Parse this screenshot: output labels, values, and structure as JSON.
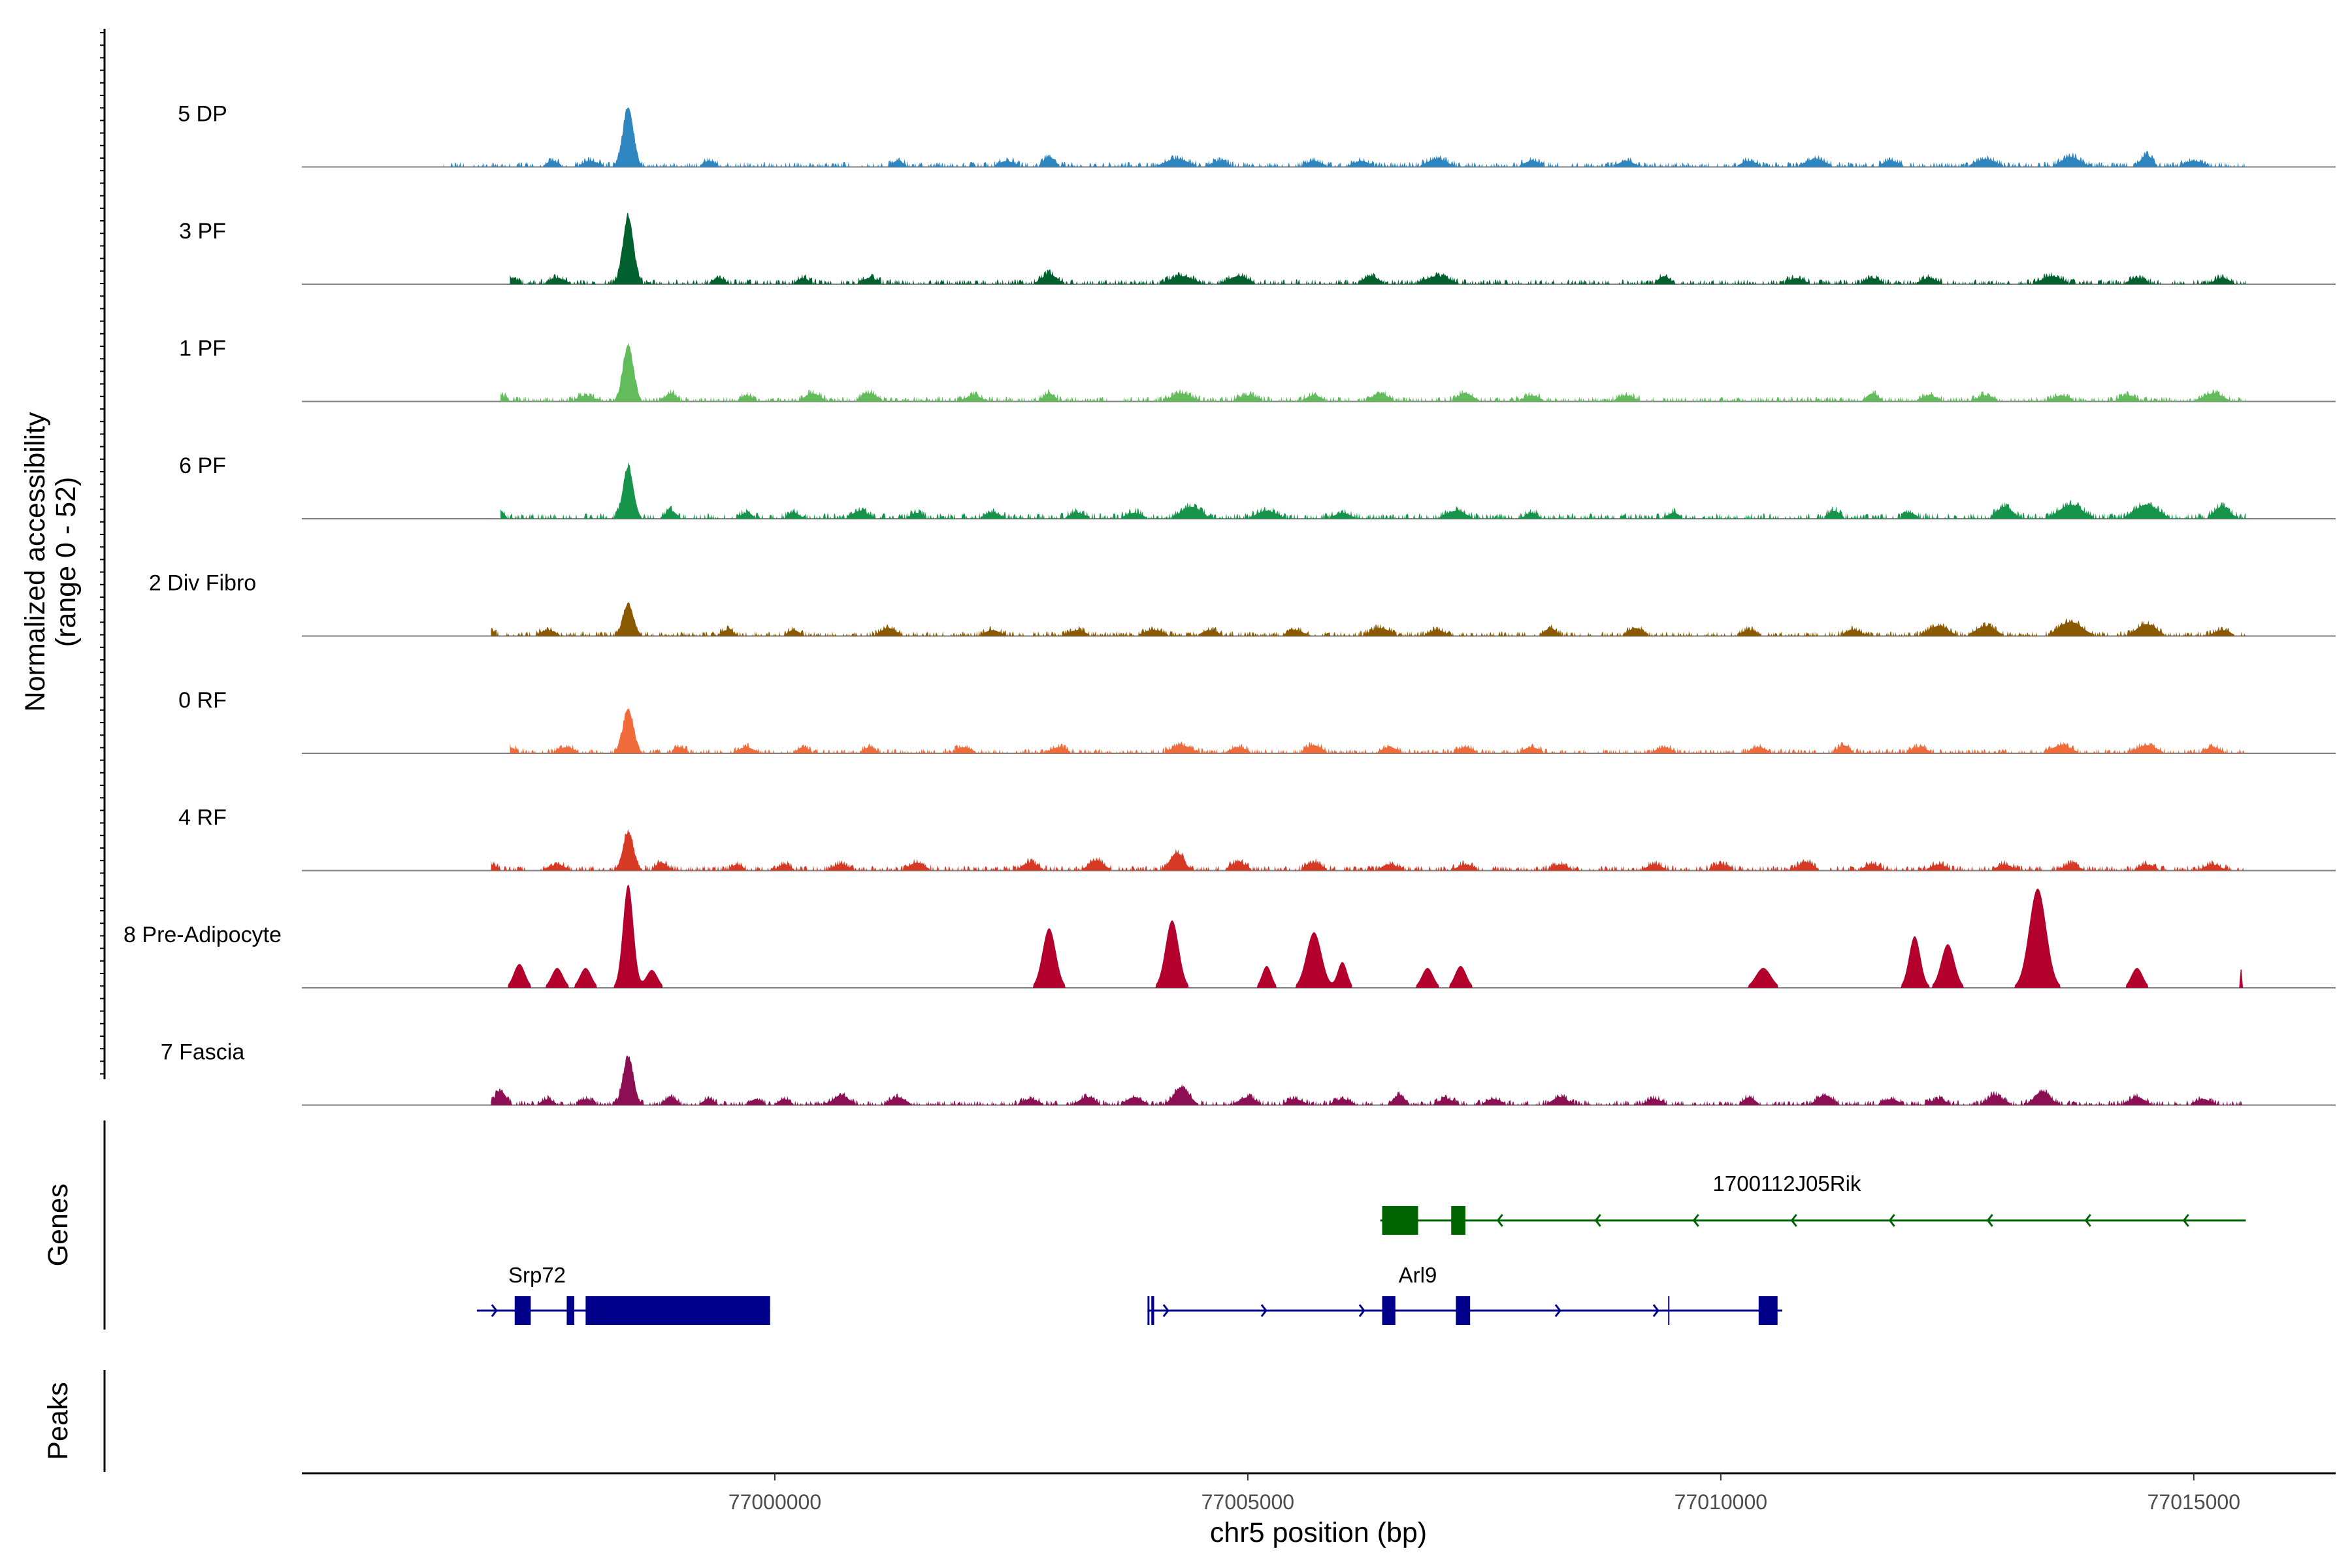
{
  "chart_data": {
    "type": "area",
    "title": "",
    "ylabel_line1": "Normalized accessibility",
    "ylabel_line2": "(range 0 - 52)",
    "ylim": [
      0,
      52
    ],
    "xlabel": "chr5 position (bp)",
    "xlim": [
      76995000,
      77016500
    ],
    "x_ticks": [
      77000000,
      77005000,
      77010000,
      77015000
    ],
    "x_tick_labels": [
      "77000000",
      "77005000",
      "77010000",
      "77015000"
    ],
    "genes_label": "Genes",
    "peaks_label": "Peaks",
    "tracks": [
      {
        "name": "5 DP",
        "color": "#2E86C1",
        "peaks": [
          [
            76997650,
            3,
            60
          ],
          [
            76998050,
            3,
            80
          ],
          [
            76998450,
            30,
            55
          ],
          [
            76999300,
            3,
            60
          ],
          [
            77001300,
            3,
            60
          ],
          [
            77002450,
            3,
            80
          ],
          [
            77002900,
            5,
            60
          ],
          [
            77004250,
            4,
            120
          ],
          [
            77004700,
            3,
            80
          ],
          [
            77005700,
            3,
            80
          ],
          [
            77006200,
            3,
            80
          ],
          [
            77007000,
            4,
            100
          ],
          [
            77008000,
            3,
            80
          ],
          [
            77009000,
            3,
            80
          ],
          [
            77010300,
            3,
            80
          ],
          [
            77011000,
            4,
            100
          ],
          [
            77011800,
            3,
            80
          ],
          [
            77012800,
            4,
            100
          ],
          [
            77013700,
            5,
            100
          ],
          [
            77014500,
            6,
            60
          ],
          [
            77015000,
            3,
            100
          ]
        ],
        "base": 2.5,
        "start": 76996500,
        "end": 77015550
      },
      {
        "name": "3 PF",
        "color": "#00612F",
        "peaks": [
          [
            76997200,
            3,
            80
          ],
          [
            76997700,
            3,
            80
          ],
          [
            76998450,
            34,
            55
          ],
          [
            76999400,
            3,
            60
          ],
          [
            77000300,
            3,
            60
          ],
          [
            77001000,
            3,
            80
          ],
          [
            77002900,
            5,
            80
          ],
          [
            77004300,
            4,
            120
          ],
          [
            77004900,
            4,
            100
          ],
          [
            77006300,
            4,
            80
          ],
          [
            77007000,
            4,
            120
          ],
          [
            77009400,
            4,
            60
          ],
          [
            77010800,
            3,
            80
          ],
          [
            77011600,
            3,
            80
          ],
          [
            77012200,
            3,
            80
          ],
          [
            77013500,
            4,
            100
          ],
          [
            77014400,
            3,
            80
          ],
          [
            77015300,
            3,
            80
          ]
        ],
        "base": 2.5,
        "start": 76997200,
        "end": 77015550
      },
      {
        "name": "1 PF",
        "color": "#62BC5C",
        "peaks": [
          [
            76997100,
            3,
            60
          ],
          [
            76998000,
            3,
            80
          ],
          [
            76998450,
            28,
            55
          ],
          [
            76998900,
            4,
            60
          ],
          [
            76999700,
            3,
            60
          ],
          [
            77000400,
            4,
            80
          ],
          [
            77001000,
            4,
            80
          ],
          [
            77002100,
            3,
            80
          ],
          [
            77002900,
            4,
            60
          ],
          [
            77004300,
            4,
            100
          ],
          [
            77005000,
            3,
            100
          ],
          [
            77005700,
            3,
            80
          ],
          [
            77006400,
            4,
            80
          ],
          [
            77007300,
            4,
            80
          ],
          [
            77008000,
            3,
            80
          ],
          [
            77009000,
            3,
            80
          ],
          [
            77011600,
            4,
            60
          ],
          [
            77012200,
            3,
            80
          ],
          [
            77012800,
            3,
            80
          ],
          [
            77013600,
            3,
            80
          ],
          [
            77014300,
            3,
            80
          ],
          [
            77015200,
            4,
            100
          ]
        ],
        "base": 2.5,
        "start": 76997100,
        "end": 77015550
      },
      {
        "name": "6 PF",
        "color": "#16954A",
        "peaks": [
          [
            76997100,
            4,
            40
          ],
          [
            76998450,
            26,
            55
          ],
          [
            76998900,
            4,
            60
          ],
          [
            76999700,
            3,
            60
          ],
          [
            77000200,
            3,
            60
          ],
          [
            77000900,
            4,
            80
          ],
          [
            77001500,
            3,
            60
          ],
          [
            77002300,
            3,
            80
          ],
          [
            77003200,
            3,
            80
          ],
          [
            77003800,
            3,
            80
          ],
          [
            77004400,
            6,
            100
          ],
          [
            77005200,
            4,
            100
          ],
          [
            77006000,
            3,
            80
          ],
          [
            77007200,
            4,
            100
          ],
          [
            77008000,
            3,
            60
          ],
          [
            77009500,
            3,
            60
          ],
          [
            77011200,
            4,
            60
          ],
          [
            77012000,
            3,
            60
          ],
          [
            77013000,
            6,
            80
          ],
          [
            77013700,
            7,
            120
          ],
          [
            77014500,
            7,
            120
          ],
          [
            77015300,
            6,
            80
          ]
        ],
        "base": 2.8,
        "start": 76997100,
        "end": 77015550
      },
      {
        "name": "2 Div Fibro",
        "color": "#8B5A00",
        "peaks": [
          [
            76997000,
            3,
            40
          ],
          [
            76997600,
            3,
            80
          ],
          [
            76998450,
            16,
            55
          ],
          [
            76999500,
            3,
            60
          ],
          [
            77000200,
            3,
            60
          ],
          [
            77001200,
            4,
            80
          ],
          [
            77002300,
            3,
            80
          ],
          [
            77003200,
            3,
            80
          ],
          [
            77004000,
            3,
            100
          ],
          [
            77004600,
            3,
            80
          ],
          [
            77005500,
            3,
            80
          ],
          [
            77006400,
            4,
            100
          ],
          [
            77007000,
            3,
            80
          ],
          [
            77008200,
            4,
            60
          ],
          [
            77009100,
            4,
            80
          ],
          [
            77010300,
            3,
            80
          ],
          [
            77011400,
            3,
            80
          ],
          [
            77012300,
            5,
            100
          ],
          [
            77012800,
            5,
            100
          ],
          [
            77013700,
            7,
            120
          ],
          [
            77014500,
            6,
            100
          ],
          [
            77015300,
            3,
            80
          ]
        ],
        "base": 2.3,
        "start": 76997000,
        "end": 77015550
      },
      {
        "name": "0 RF",
        "color": "#F06A3A",
        "peaks": [
          [
            76997200,
            3,
            60
          ],
          [
            76997800,
            3,
            80
          ],
          [
            76998450,
            22,
            55
          ],
          [
            76999000,
            3,
            60
          ],
          [
            76999700,
            3,
            80
          ],
          [
            77000300,
            3,
            60
          ],
          [
            77001000,
            3,
            60
          ],
          [
            77002000,
            3,
            80
          ],
          [
            77003000,
            3,
            80
          ],
          [
            77004300,
            4,
            100
          ],
          [
            77004900,
            3,
            80
          ],
          [
            77005700,
            4,
            80
          ],
          [
            77006500,
            3,
            80
          ],
          [
            77007300,
            3,
            80
          ],
          [
            77008000,
            3,
            80
          ],
          [
            77009400,
            3,
            80
          ],
          [
            77010400,
            3,
            80
          ],
          [
            77011300,
            4,
            60
          ],
          [
            77012100,
            3,
            80
          ],
          [
            77013600,
            4,
            100
          ],
          [
            77014500,
            4,
            100
          ],
          [
            77015200,
            3,
            80
          ]
        ],
        "base": 2.3,
        "start": 76997200,
        "end": 77015550
      },
      {
        "name": "4 RF",
        "color": "#D63A25",
        "peaks": [
          [
            76997000,
            3,
            60
          ],
          [
            76997700,
            3,
            80
          ],
          [
            76998450,
            19,
            55
          ],
          [
            76998800,
            4,
            60
          ],
          [
            76999600,
            3,
            60
          ],
          [
            77000100,
            3,
            60
          ],
          [
            77000700,
            3,
            80
          ],
          [
            77001500,
            4,
            80
          ],
          [
            77002700,
            4,
            80
          ],
          [
            77003400,
            5,
            80
          ],
          [
            77004250,
            9,
            70
          ],
          [
            77004900,
            4,
            80
          ],
          [
            77005700,
            4,
            80
          ],
          [
            77006500,
            3,
            80
          ],
          [
            77007300,
            3,
            80
          ],
          [
            77008300,
            3,
            80
          ],
          [
            77009300,
            3,
            80
          ],
          [
            77010000,
            3,
            80
          ],
          [
            77010900,
            4,
            80
          ],
          [
            77011600,
            3,
            80
          ],
          [
            77012300,
            3,
            80
          ],
          [
            77013000,
            3,
            80
          ],
          [
            77013700,
            3,
            80
          ],
          [
            77014500,
            3,
            80
          ],
          [
            77015200,
            3,
            80
          ]
        ],
        "base": 2.5,
        "start": 76997000,
        "end": 77015550
      },
      {
        "name": "8 Pre-Adipocyte",
        "color": "#B3002D",
        "peaks": [
          [
            76997300,
            12,
            60
          ],
          [
            76997700,
            10,
            60
          ],
          [
            76998000,
            10,
            60
          ],
          [
            76998450,
            52,
            55
          ],
          [
            76998700,
            9,
            60
          ],
          [
            77002900,
            30,
            70
          ],
          [
            77004200,
            34,
            70
          ],
          [
            77005200,
            11,
            50
          ],
          [
            77005700,
            28,
            80
          ],
          [
            77006000,
            13,
            50
          ],
          [
            77006900,
            10,
            60
          ],
          [
            77007250,
            11,
            60
          ],
          [
            77010450,
            10,
            80
          ],
          [
            77012050,
            26,
            60
          ],
          [
            77012400,
            22,
            70
          ],
          [
            77013350,
            50,
            90
          ],
          [
            77014400,
            10,
            60
          ],
          [
            77015500,
            10,
            10
          ]
        ],
        "base": 0,
        "start": 76997000,
        "end": 77015550
      },
      {
        "name": "7 Fascia",
        "color": "#8B0F52",
        "peaks": [
          [
            76997100,
            7,
            60
          ],
          [
            76997600,
            3,
            60
          ],
          [
            76998000,
            3,
            60
          ],
          [
            76998450,
            24,
            55
          ],
          [
            76998900,
            4,
            60
          ],
          [
            76999300,
            3,
            60
          ],
          [
            76999800,
            3,
            60
          ],
          [
            77000100,
            3,
            60
          ],
          [
            77000700,
            5,
            80
          ],
          [
            77001300,
            4,
            80
          ],
          [
            77002700,
            3,
            80
          ],
          [
            77003300,
            4,
            80
          ],
          [
            77003800,
            4,
            80
          ],
          [
            77004300,
            9,
            80
          ],
          [
            77005000,
            4,
            80
          ],
          [
            77005500,
            3,
            80
          ],
          [
            77006000,
            3,
            80
          ],
          [
            77006600,
            5,
            60
          ],
          [
            77007100,
            3,
            80
          ],
          [
            77007600,
            3,
            80
          ],
          [
            77008300,
            4,
            80
          ],
          [
            77009300,
            3,
            80
          ],
          [
            77010300,
            4,
            60
          ],
          [
            77011100,
            5,
            80
          ],
          [
            77011800,
            3,
            80
          ],
          [
            77012300,
            3,
            80
          ],
          [
            77012900,
            5,
            80
          ],
          [
            77013400,
            7,
            80
          ],
          [
            77014400,
            4,
            80
          ],
          [
            77015100,
            3,
            80
          ]
        ],
        "base": 2.3,
        "start": 76997000,
        "end": 77015550
      }
    ],
    "genes": [
      {
        "name": "1700112J05Rik",
        "color": "#006400",
        "strand": "-",
        "start": 77006400,
        "end": 77015550,
        "exons": [
          [
            77006420,
            77006800
          ],
          [
            77007150,
            77007300
          ]
        ]
      },
      {
        "name": "Srp72",
        "color": "#00008B",
        "strand": "+",
        "start": 76996850,
        "end": 76999950,
        "exons": [
          [
            76997250,
            76997420
          ],
          [
            76997800,
            76997880
          ],
          [
            76998000,
            76999950
          ]
        ]
      },
      {
        "name": "Arl9",
        "color": "#00008B",
        "strand": "+",
        "start": 77003950,
        "end": 77010650,
        "exons": [
          [
            77003980,
            77004010
          ],
          [
            77006420,
            77006560
          ],
          [
            77007200,
            77007350
          ],
          [
            77010400,
            77010600
          ]
        ]
      }
    ]
  }
}
